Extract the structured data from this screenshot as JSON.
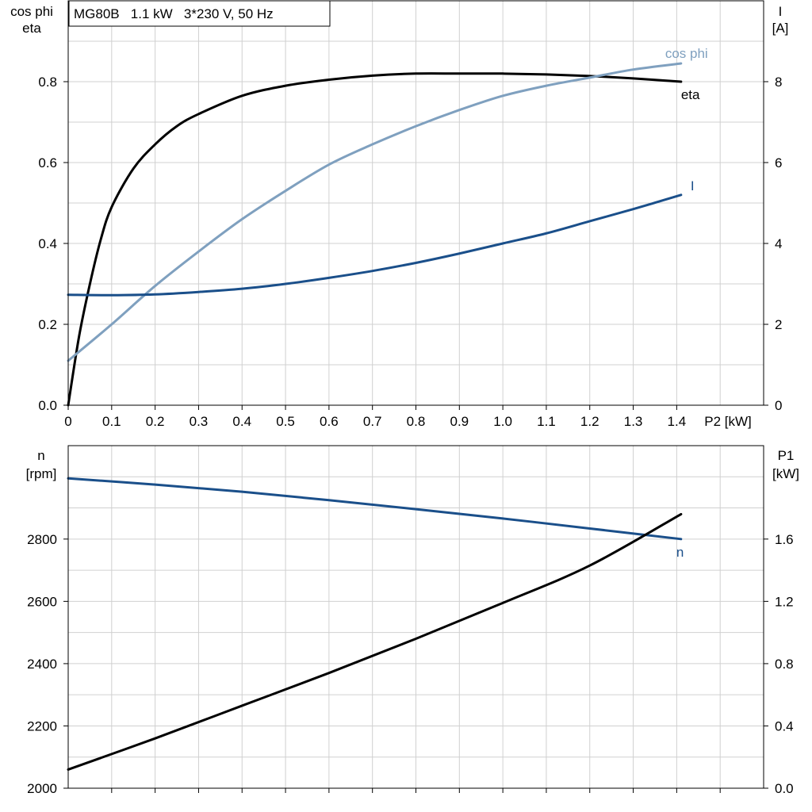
{
  "title": "MG80B   1.1 kW   3*230 V, 50 Hz",
  "colors": {
    "grid": "#d0d0d0",
    "axis": "#000000",
    "eta": "#000000",
    "cos_phi": "#7fa0bf",
    "current": "#1a4f8a",
    "speed": "#1a4f8a",
    "p1": "#000000"
  },
  "chart_data": [
    {
      "type": "line",
      "xlabel": "P2 [kW]",
      "x_ticks": [
        "0",
        "0.1",
        "0.2",
        "0.3",
        "0.4",
        "0.5",
        "0.6",
        "0.7",
        "0.8",
        "0.9",
        "1.0",
        "1.1",
        "1.2",
        "1.3",
        "1.4"
      ],
      "xlim": [
        0,
        1.6
      ],
      "ylabel_left": [
        "cos phi",
        "eta"
      ],
      "ylim_left": [
        0,
        1.0
      ],
      "y_ticks_left": [
        "0.0",
        "0.2",
        "0.4",
        "0.6",
        "0.8"
      ],
      "ylabel_right": [
        "I",
        "[A]"
      ],
      "ylim_right": [
        0,
        10
      ],
      "y_ticks_right": [
        "0",
        "2",
        "4",
        "6",
        "8"
      ],
      "grid": true,
      "series": [
        {
          "name": "eta",
          "axis": "left",
          "x": [
            0,
            0.025,
            0.05,
            0.075,
            0.1,
            0.15,
            0.2,
            0.25,
            0.3,
            0.4,
            0.5,
            0.6,
            0.7,
            0.8,
            0.9,
            1.0,
            1.1,
            1.2,
            1.3,
            1.41
          ],
          "y": [
            0,
            0.17,
            0.3,
            0.41,
            0.49,
            0.585,
            0.645,
            0.69,
            0.72,
            0.765,
            0.79,
            0.805,
            0.815,
            0.82,
            0.82,
            0.82,
            0.818,
            0.814,
            0.808,
            0.8
          ]
        },
        {
          "name": "cos phi",
          "axis": "left",
          "x": [
            0,
            0.1,
            0.2,
            0.3,
            0.4,
            0.5,
            0.6,
            0.7,
            0.8,
            0.9,
            1.0,
            1.1,
            1.2,
            1.3,
            1.41
          ],
          "y": [
            0.11,
            0.2,
            0.295,
            0.38,
            0.46,
            0.53,
            0.595,
            0.645,
            0.69,
            0.73,
            0.765,
            0.79,
            0.81,
            0.83,
            0.845
          ]
        },
        {
          "name": "I",
          "axis": "right",
          "x": [
            0,
            0.1,
            0.2,
            0.3,
            0.4,
            0.5,
            0.6,
            0.7,
            0.8,
            0.9,
            1.0,
            1.1,
            1.2,
            1.3,
            1.41
          ],
          "y": [
            2.73,
            2.72,
            2.74,
            2.8,
            2.88,
            3.0,
            3.15,
            3.32,
            3.52,
            3.75,
            4.0,
            4.25,
            4.55,
            4.85,
            5.2
          ]
        }
      ]
    },
    {
      "type": "line",
      "xlim": [
        0,
        1.6
      ],
      "ylabel_left": [
        "n",
        "[rpm]"
      ],
      "ylim_left": [
        2000,
        3100
      ],
      "y_ticks_left": [
        "2000",
        "2200",
        "2400",
        "2600",
        "2800"
      ],
      "ylabel_right": [
        "P1",
        "[kW]"
      ],
      "ylim_right": [
        0,
        2.2
      ],
      "y_ticks_right": [
        "0.0",
        "0.4",
        "0.8",
        "1.2",
        "1.6"
      ],
      "grid": true,
      "series": [
        {
          "name": "n",
          "axis": "left",
          "x": [
            0,
            0.2,
            0.4,
            0.6,
            0.8,
            1.0,
            1.2,
            1.41
          ],
          "y": [
            2995,
            2975,
            2952,
            2925,
            2896,
            2866,
            2834,
            2800
          ]
        },
        {
          "axis": "right",
          "x": [
            0,
            0.2,
            0.4,
            0.6,
            0.8,
            1.0,
            1.2,
            1.41
          ],
          "y": [
            0.12,
            0.32,
            0.53,
            0.74,
            0.96,
            1.19,
            1.43,
            1.76
          ]
        }
      ]
    }
  ]
}
